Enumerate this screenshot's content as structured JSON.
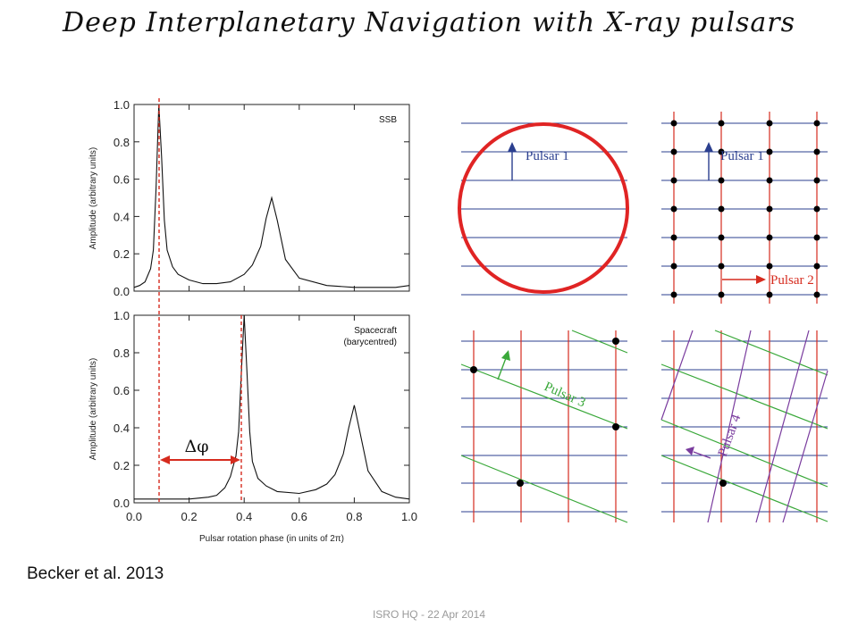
{
  "slide": {
    "title": "Deep Interplanetary Navigation with X-ray pulsars",
    "citation": "Becker et al. 2013",
    "footer": "ISRO HQ - 22 Apr 2014"
  },
  "colors": {
    "red": "#d62b1e",
    "blue": "#2b3f8f",
    "green": "#3aa83a",
    "purple": "#7a3c9e",
    "profile": "#111111"
  },
  "chart_data": [
    {
      "type": "line",
      "panel_label": "SSB",
      "panel_sublabel": "",
      "ylabel": "Amplitude (arbitrary units)",
      "xlim": [
        0,
        1
      ],
      "ylim": [
        0,
        1
      ],
      "y_ticks": [
        "0.0",
        "0.2",
        "0.4",
        "0.6",
        "0.8",
        "1.0"
      ],
      "series": [
        {
          "x": [
            0.0,
            0.02,
            0.04,
            0.06,
            0.07,
            0.08,
            0.09,
            0.1,
            0.11,
            0.12,
            0.14,
            0.16,
            0.2,
            0.25,
            0.3,
            0.35,
            0.4,
            0.43,
            0.46,
            0.48,
            0.5,
            0.52,
            0.55,
            0.6,
            0.7,
            0.8,
            0.9,
            0.95,
            1.0
          ],
          "y": [
            0.02,
            0.03,
            0.05,
            0.12,
            0.22,
            0.55,
            1.0,
            0.72,
            0.38,
            0.22,
            0.13,
            0.09,
            0.06,
            0.04,
            0.04,
            0.05,
            0.09,
            0.14,
            0.24,
            0.39,
            0.5,
            0.38,
            0.17,
            0.07,
            0.03,
            0.02,
            0.02,
            0.02,
            0.03
          ]
        }
      ],
      "marker_phase": 0.09
    },
    {
      "type": "line",
      "panel_label": "Spacecraft",
      "panel_sublabel": "(barycentred)",
      "ylabel": "Amplitude (arbitrary units)",
      "xlabel": "Pulsar rotation phase (in units of 2π)",
      "xlim": [
        0,
        1
      ],
      "ylim": [
        0,
        1
      ],
      "x_ticks": [
        "0.0",
        "0.2",
        "0.4",
        "0.6",
        "0.8",
        "1.0"
      ],
      "y_ticks": [
        "0.0",
        "0.2",
        "0.4",
        "0.6",
        "0.8",
        "1.0"
      ],
      "series": [
        {
          "x": [
            0.0,
            0.1,
            0.2,
            0.27,
            0.3,
            0.33,
            0.35,
            0.37,
            0.38,
            0.39,
            0.4,
            0.41,
            0.42,
            0.43,
            0.45,
            0.48,
            0.52,
            0.6,
            0.66,
            0.7,
            0.73,
            0.76,
            0.78,
            0.8,
            0.82,
            0.85,
            0.9,
            0.95,
            1.0
          ],
          "y": [
            0.02,
            0.02,
            0.02,
            0.03,
            0.04,
            0.08,
            0.14,
            0.25,
            0.38,
            0.7,
            1.0,
            0.7,
            0.38,
            0.22,
            0.13,
            0.09,
            0.06,
            0.05,
            0.07,
            0.1,
            0.15,
            0.26,
            0.4,
            0.52,
            0.38,
            0.17,
            0.06,
            0.03,
            0.02
          ]
        }
      ],
      "marker_phase": 0.4,
      "annotation": "Δφ"
    },
    {
      "type": "diagram",
      "panel": "top-left",
      "pulsar_label": "Pulsar 1",
      "blue_lines": 7,
      "circle": true
    },
    {
      "type": "diagram",
      "panel": "top-right",
      "labels": [
        "Pulsar 1",
        "Pulsar 2"
      ],
      "grid_columns": 4,
      "grid_rows": 7
    },
    {
      "type": "diagram",
      "panel": "bottom-left",
      "pulsar_label": "Pulsar 3",
      "intersection_points": 4
    },
    {
      "type": "diagram",
      "panel": "bottom-right",
      "pulsar_label": "Pulsar 4",
      "intersection_points": 1
    }
  ]
}
